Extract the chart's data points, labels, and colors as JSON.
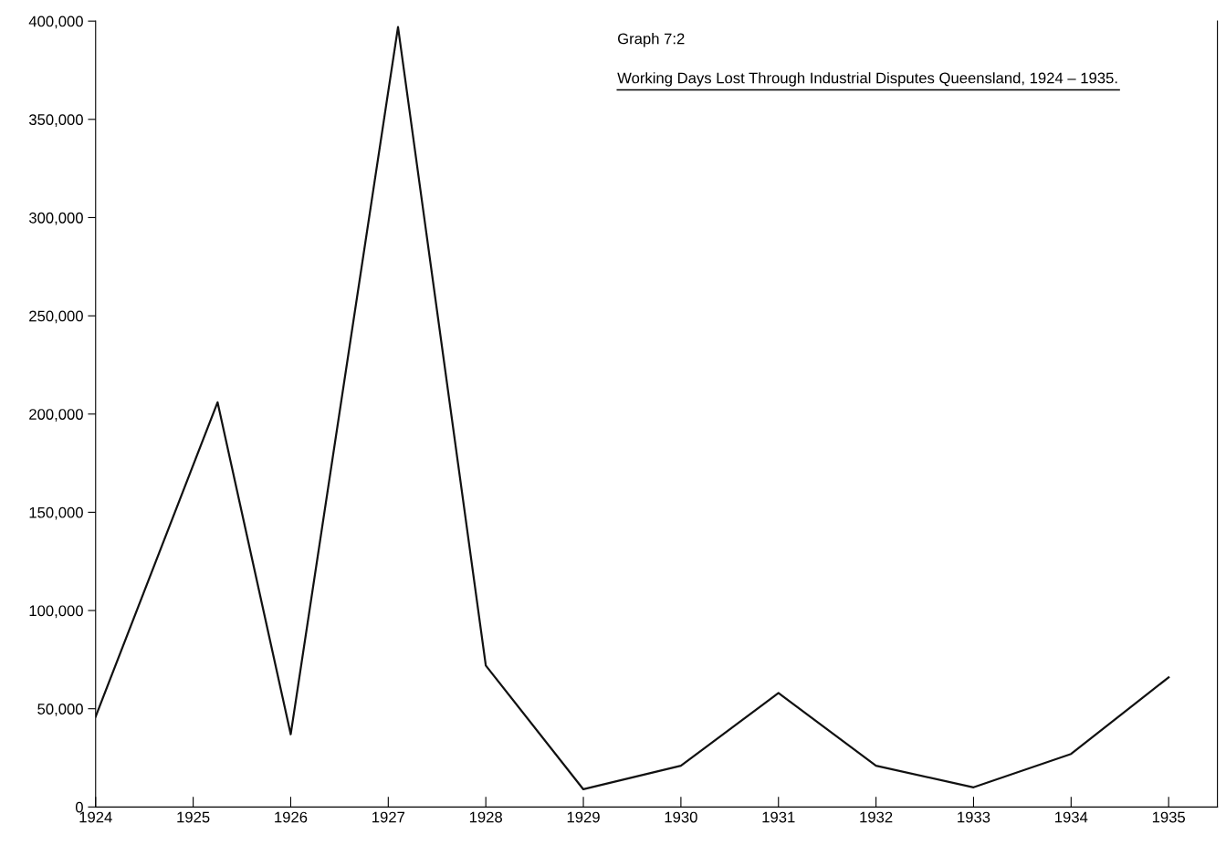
{
  "chart_data": {
    "type": "line",
    "title": "Graph 7:2",
    "subtitle": "Working Days Lost Through Industrial Disputes Queensland, 1924 – 1935.",
    "x": [
      1924,
      1925.25,
      1926,
      1927.1,
      1928,
      1929,
      1930,
      1931,
      1932,
      1933,
      1934,
      1935
    ],
    "series": [
      {
        "color": "#111111",
        "values": [
          46000,
          206000,
          37000,
          397000,
          72000,
          9000,
          21000,
          58000,
          21000,
          10000,
          27000,
          66000
        ]
      }
    ],
    "xlim": [
      1924,
      1935.5
    ],
    "xticks": [
      1924,
      1925,
      1926,
      1927,
      1928,
      1929,
      1930,
      1931,
      1932,
      1933,
      1934,
      1935
    ],
    "ylim": [
      0,
      400000
    ],
    "yticks": [
      0,
      {
        "value": 50000,
        "label": "50,000"
      },
      {
        "value": 100000,
        "label": "100,000"
      },
      {
        "value": 150000,
        "label": "150,000"
      },
      {
        "value": 200000,
        "label": "200,000"
      },
      {
        "value": 250000,
        "label": "250,000"
      },
      {
        "value": 300000,
        "label": "300,000"
      },
      {
        "value": 350000,
        "label": "350,000"
      },
      {
        "value": 400000,
        "label": "400,000"
      }
    ],
    "grid": false,
    "legend": false,
    "marker": "none",
    "line_style": "solid"
  }
}
